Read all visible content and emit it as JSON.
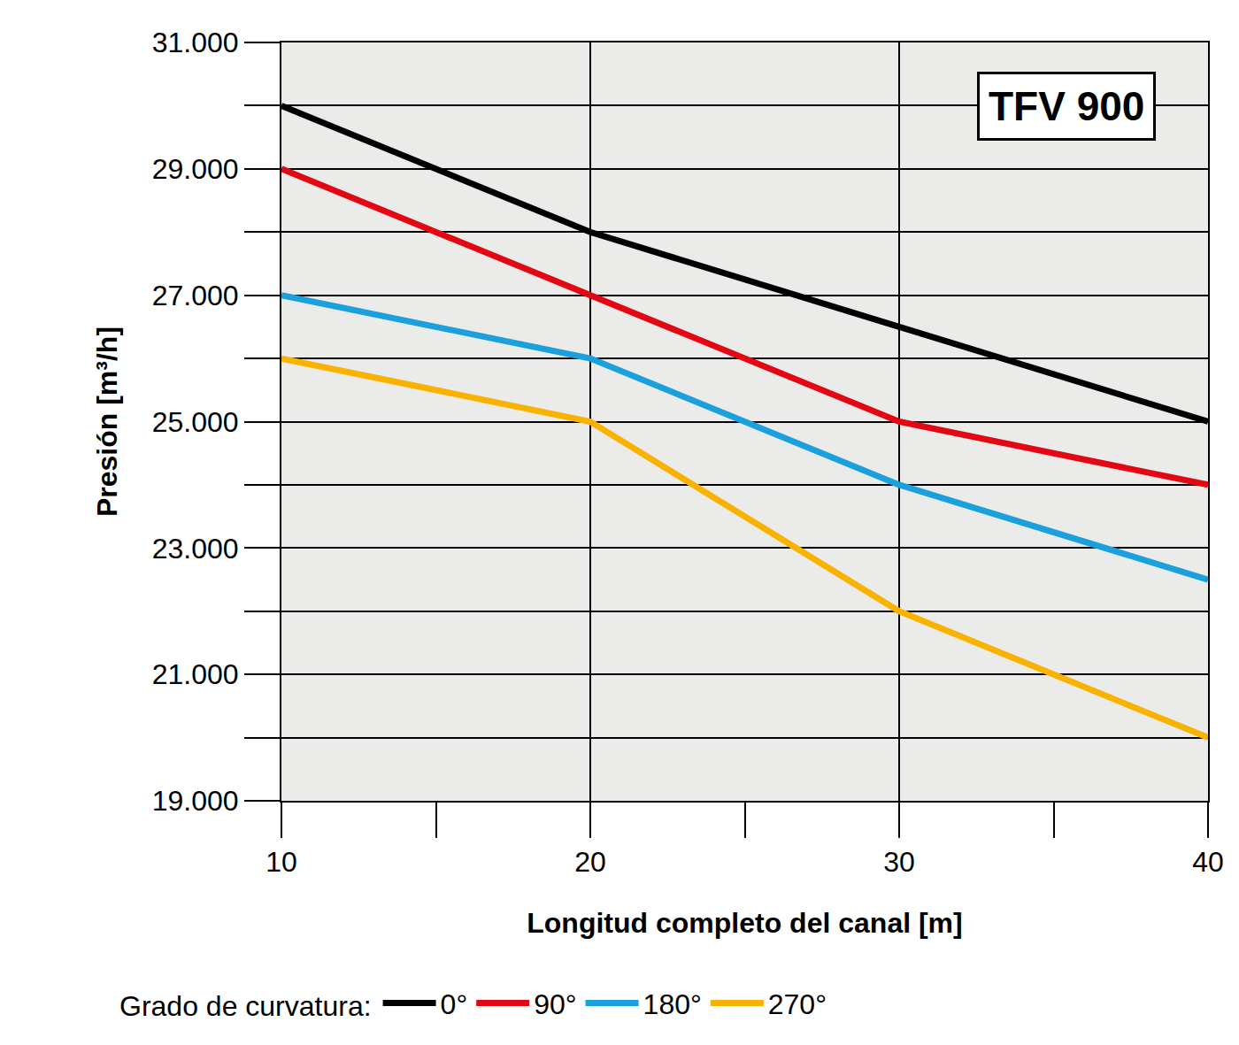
{
  "chart_data": {
    "type": "line",
    "annotation": "TFV 900",
    "x_label": "Longitud completo del canal [m]",
    "y_label": "Presión [m³/h]",
    "legend_title": "Grado de curvatura:",
    "x": [
      10,
      20,
      30,
      40
    ],
    "series": [
      {
        "name": "0°",
        "color": "#000000",
        "values": [
          30000,
          28000,
          26500,
          25000
        ]
      },
      {
        "name": "90°",
        "color": "#e30613",
        "values": [
          29000,
          27000,
          25000,
          24000
        ]
      },
      {
        "name": "180°",
        "color": "#1aa0dc",
        "values": [
          27000,
          26000,
          24000,
          22500
        ]
      },
      {
        "name": "270°",
        "color": "#f9b200",
        "values": [
          26000,
          25000,
          22000,
          20000
        ]
      }
    ],
    "xlim": [
      10,
      40
    ],
    "ylim": [
      19000,
      31000
    ],
    "xticks": [
      10,
      20,
      30,
      40
    ],
    "yticks": [
      {
        "value": 19000,
        "label": "19.000"
      },
      {
        "value": 21000,
        "label": "21.000"
      },
      {
        "value": 23000,
        "label": "23.000"
      },
      {
        "value": 25000,
        "label": "25.000"
      },
      {
        "value": 27000,
        "label": "27.000"
      },
      {
        "value": 29000,
        "label": "29.000"
      },
      {
        "value": 31000,
        "label": "31.000"
      }
    ],
    "grid": true,
    "legend": "bottom"
  }
}
